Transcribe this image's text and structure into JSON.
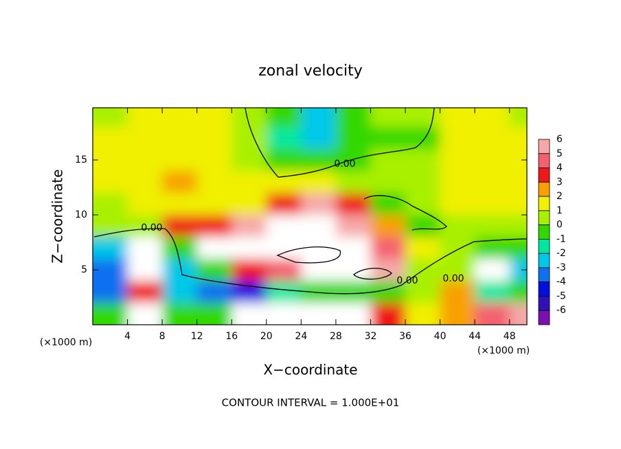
{
  "chart_data": {
    "type": "contour",
    "title": "zonal velocity",
    "x_label": "X−coordinate",
    "y_label": "Z−coordinate",
    "unit_labels": [
      "(×1000 m)",
      "(×1000 m)"
    ],
    "footer": "CONTOUR INTERVAL = 1.000E+01",
    "contour_labels": [
      "0.00",
      "0.00",
      "0.00",
      "0.00"
    ],
    "xlim": [
      0,
      50
    ],
    "ylim": [
      0,
      19.75
    ],
    "xticks": [
      4,
      8,
      12,
      16,
      20,
      24,
      28,
      32,
      36,
      40,
      44,
      48
    ],
    "yticks": [
      5,
      10,
      15
    ],
    "x": [
      2,
      6,
      10,
      14,
      18,
      22,
      26,
      30,
      34,
      38,
      42,
      46,
      50
    ],
    "y": [
      19,
      17,
      15,
      13,
      11,
      9,
      7,
      5,
      3,
      1
    ],
    "z": [
      [
        0.8,
        1,
        1,
        1,
        0.5,
        -1,
        -3,
        -0.5,
        0.3,
        0.5,
        1,
        1,
        0.8
      ],
      [
        1,
        1.2,
        1.5,
        1,
        0,
        -1.5,
        -3,
        -1,
        -0.5,
        -0.3,
        1,
        1.2,
        1
      ],
      [
        1.2,
        1.5,
        1.5,
        1.2,
        0.5,
        -0.5,
        -1,
        -0.8,
        0.2,
        0.5,
        1,
        1.2,
        1
      ],
      [
        1,
        1.5,
        2,
        1.5,
        1,
        1,
        1.5,
        0.5,
        0.3,
        0.8,
        1.2,
        1.5,
        1
      ],
      [
        0.8,
        1,
        1,
        1,
        1.5,
        3,
        5,
        3,
        -0.3,
        0.5,
        1,
        1.5,
        1
      ],
      [
        0.5,
        0.5,
        3,
        3,
        5,
        7,
        7,
        5,
        2,
        -0.5,
        0.5,
        0.5,
        0.5
      ],
      [
        -3,
        8,
        -1,
        7,
        7,
        8,
        8,
        8,
        4,
        1,
        0,
        -0.5,
        -1
      ],
      [
        -4,
        8,
        -3,
        -1,
        3,
        4,
        7,
        8,
        5,
        0.5,
        0,
        8,
        -3
      ],
      [
        -4,
        3,
        -3,
        -4,
        -5,
        -2,
        -1,
        -1,
        -0.5,
        0,
        2,
        -2,
        -1
      ],
      [
        -1,
        8,
        -1,
        -1,
        8,
        8,
        8,
        8,
        3,
        1,
        2,
        4,
        5
      ]
    ],
    "colorbar": {
      "levels": [
        6,
        5,
        4,
        3,
        2,
        1,
        0,
        -1,
        -2,
        -3,
        -4,
        -5,
        -6
      ],
      "colors": [
        "#f6a8a8",
        "#f46070",
        "#f01818",
        "#f8a000",
        "#f0f000",
        "#a8f000",
        "#30d800",
        "#00e8a0",
        "#00c8e8",
        "#1070f0",
        "#0010e0",
        "#3010b8",
        "#7a10b0"
      ],
      "above_color": "#ffffff"
    }
  }
}
